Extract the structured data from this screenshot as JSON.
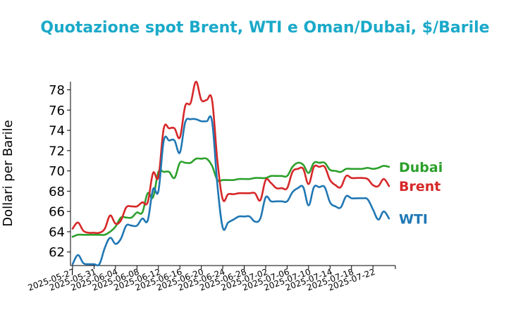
{
  "chart_data": {
    "type": "line",
    "title": "Quotazione spot Brent, WTI e Oman/Dubai, $/Barile",
    "xlabel": "",
    "ylabel": "Dollari per Barile",
    "x": [
      "2025-05-27",
      "2025-05-28",
      "2025-05-29",
      "2025-05-30",
      "2025-05-31",
      "2025-06-01",
      "2025-06-02",
      "2025-06-03",
      "2025-06-04",
      "2025-06-05",
      "2025-06-06",
      "2025-06-07",
      "2025-06-08",
      "2025-06-09",
      "2025-06-10",
      "2025-06-11",
      "2025-06-12",
      "2025-06-13",
      "2025-06-14",
      "2025-06-15",
      "2025-06-16",
      "2025-06-17",
      "2025-06-18",
      "2025-06-19",
      "2025-06-20",
      "2025-06-21",
      "2025-06-22",
      "2025-06-23",
      "2025-06-24",
      "2025-06-25",
      "2025-06-26",
      "2025-06-27",
      "2025-06-28",
      "2025-06-29",
      "2025-06-30",
      "2025-07-01",
      "2025-07-02",
      "2025-07-03",
      "2025-07-04",
      "2025-07-05",
      "2025-07-06",
      "2025-07-07",
      "2025-07-08",
      "2025-07-09",
      "2025-07-10",
      "2025-07-11",
      "2025-07-12",
      "2025-07-13",
      "2025-07-14",
      "2025-07-15",
      "2025-07-16",
      "2025-07-17",
      "2025-07-18",
      "2025-07-19",
      "2025-07-20",
      "2025-07-21",
      "2025-07-22",
      "2025-07-23",
      "2025-07-24",
      "2025-07-25"
    ],
    "xticks": [
      "2025-05-27",
      "2025-05-31",
      "2025-06-04",
      "2025-06-08",
      "2025-06-12",
      "2025-06-16",
      "2025-06-20",
      "2025-06-24",
      "2025-06-28",
      "2025-07-02",
      "2025-07-06",
      "2025-07-10",
      "2025-07-14",
      "2025-07-18",
      "2025-07-22"
    ],
    "ylim": [
      60.8,
      78.8
    ],
    "yticks": [
      62,
      64,
      66,
      68,
      70,
      72,
      74,
      76,
      78
    ],
    "grid": false,
    "legend": "labels at right end of lines",
    "series": [
      {
        "name": "Dubai",
        "color": "#2ca02c",
        "values": [
          63.5,
          63.7,
          63.7,
          63.7,
          63.7,
          63.7,
          63.7,
          64.0,
          64.5,
          65.4,
          65.4,
          65.4,
          65.9,
          65.9,
          67.8,
          67.4,
          69.9,
          69.9,
          69.9,
          69.3,
          70.8,
          70.8,
          70.8,
          71.2,
          71.2,
          71.2,
          70.5,
          69.1,
          69.1,
          69.1,
          69.1,
          69.2,
          69.2,
          69.2,
          69.3,
          69.3,
          69.3,
          69.5,
          69.5,
          69.5,
          69.5,
          70.4,
          70.8,
          70.6,
          69.8,
          70.8,
          70.8,
          70.8,
          70.1,
          70.0,
          69.9,
          70.2,
          70.2,
          70.2,
          70.2,
          70.3,
          70.2,
          70.3,
          70.5,
          70.4
        ]
      },
      {
        "name": "Brent",
        "color": "#d62728",
        "values": [
          64.3,
          64.9,
          64.1,
          63.9,
          63.9,
          63.9,
          64.3,
          65.6,
          64.8,
          65.1,
          66.4,
          66.5,
          66.5,
          66.9,
          66.9,
          69.8,
          69.4,
          74.2,
          74.2,
          74.2,
          73.3,
          76.4,
          76.7,
          78.8,
          77.0,
          77.0,
          77.0,
          71.0,
          67.2,
          67.7,
          67.7,
          67.8,
          67.8,
          67.8,
          67.8,
          67.1,
          69.1,
          68.8,
          68.3,
          68.3,
          68.3,
          69.9,
          70.2,
          70.2,
          68.7,
          70.4,
          70.4,
          70.4,
          69.1,
          68.6,
          68.4,
          69.5,
          69.3,
          69.3,
          69.3,
          69.2,
          68.6,
          68.5,
          69.2,
          68.5
        ]
      },
      {
        "name": "WTI",
        "color": "#1f77b4",
        "values": [
          60.8,
          61.7,
          60.9,
          60.8,
          60.8,
          60.8,
          62.4,
          63.4,
          62.8,
          63.3,
          64.6,
          64.6,
          64.6,
          65.3,
          65.1,
          68.2,
          68.0,
          73.0,
          73.0,
          73.0,
          71.8,
          74.8,
          75.1,
          75.1,
          74.9,
          74.9,
          74.9,
          68.6,
          64.4,
          64.9,
          65.2,
          65.5,
          65.5,
          65.5,
          65.0,
          65.3,
          67.4,
          67.0,
          67.0,
          67.0,
          67.0,
          67.9,
          68.3,
          68.4,
          66.6,
          68.4,
          68.4,
          68.4,
          66.9,
          66.5,
          66.4,
          67.5,
          67.3,
          67.3,
          67.3,
          67.2,
          66.2,
          65.2,
          66.0,
          65.3
        ]
      }
    ]
  }
}
